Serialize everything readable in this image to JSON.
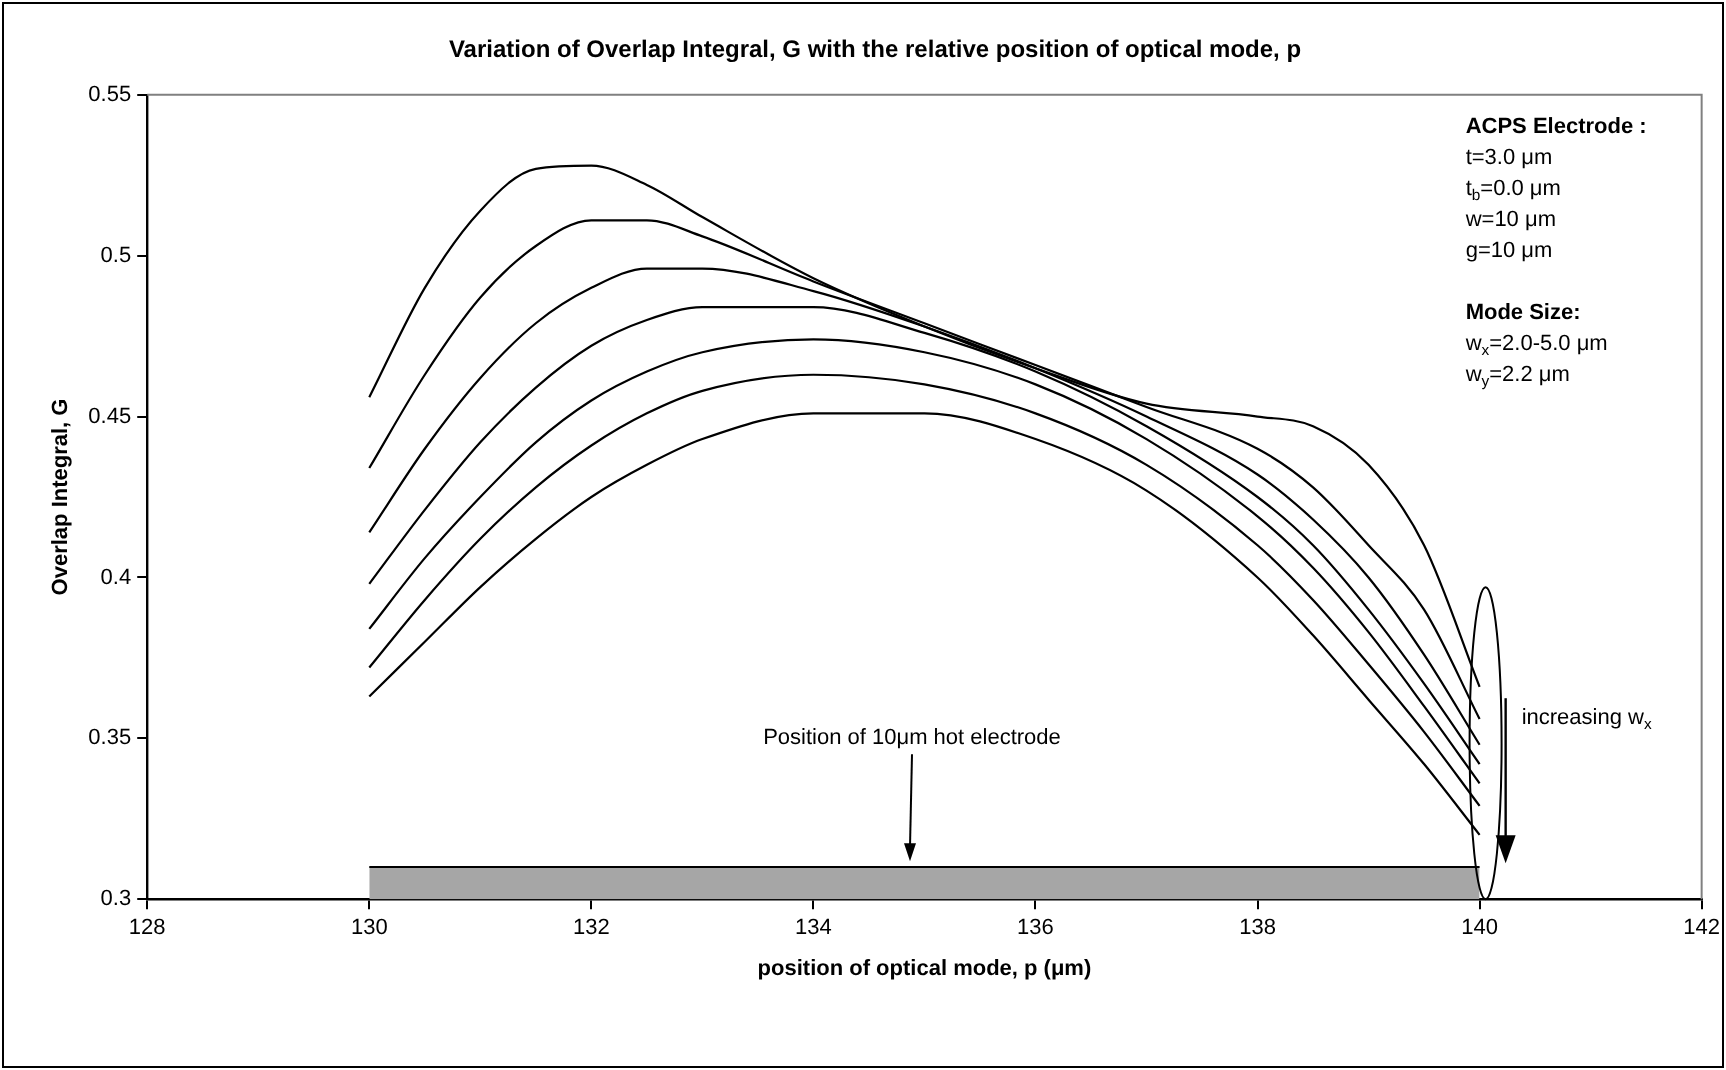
{
  "chart_data": {
    "type": "line",
    "title": "Variation of Overlap Integral, G with the relative position of optical mode, p",
    "xlabel": "position of optical mode, p (μm)",
    "ylabel": "Overlap Integral, G",
    "x": [
      130,
      130.5,
      131,
      131.5,
      132,
      132.5,
      133,
      134,
      135,
      136,
      137,
      138,
      138.5,
      139,
      139.5,
      140
    ],
    "series": [
      {
        "color": "#000000",
        "values": [
          0.456,
          0.49,
          0.514,
          0.527,
          0.528,
          0.522,
          0.512,
          0.493,
          0.478,
          0.465,
          0.454,
          0.45,
          0.447,
          0.435,
          0.41,
          0.366
        ]
      },
      {
        "color": "#000000",
        "values": [
          0.434,
          0.463,
          0.487,
          0.503,
          0.511,
          0.511,
          0.506,
          0.492,
          0.479,
          0.466,
          0.453,
          0.44,
          0.428,
          0.41,
          0.39,
          0.356
        ]
      },
      {
        "color": "#000000",
        "values": [
          0.414,
          0.44,
          0.462,
          0.479,
          0.49,
          0.496,
          0.496,
          0.489,
          0.478,
          0.465,
          0.45,
          0.432,
          0.418,
          0.4,
          0.376,
          0.348
        ]
      },
      {
        "color": "#000000",
        "values": [
          0.398,
          0.421,
          0.442,
          0.459,
          0.472,
          0.48,
          0.484,
          0.484,
          0.476,
          0.464,
          0.447,
          0.425,
          0.41,
          0.39,
          0.367,
          0.342
        ]
      },
      {
        "color": "#000000",
        "values": [
          0.384,
          0.406,
          0.425,
          0.442,
          0.455,
          0.464,
          0.47,
          0.474,
          0.47,
          0.46,
          0.443,
          0.419,
          0.403,
          0.383,
          0.36,
          0.336
        ]
      },
      {
        "color": "#000000",
        "values": [
          0.372,
          0.393,
          0.412,
          0.428,
          0.441,
          0.451,
          0.458,
          0.463,
          0.46,
          0.451,
          0.435,
          0.41,
          0.393,
          0.373,
          0.352,
          0.329
        ]
      },
      {
        "color": "#000000",
        "values": [
          0.363,
          0.38,
          0.397,
          0.412,
          0.425,
          0.435,
          0.443,
          0.451,
          0.451,
          0.443,
          0.427,
          0.4,
          0.382,
          0.362,
          0.342,
          0.32
        ]
      },
      {
        "type": "area",
        "color": "#a6a6a6",
        "x": [
          130,
          140
        ],
        "values": [
          0.31,
          0.31
        ]
      }
    ],
    "xlim": [
      128,
      142
    ],
    "xticks": [
      128,
      130,
      132,
      134,
      136,
      138,
      140,
      142
    ],
    "ylim": [
      0.3,
      0.55
    ],
    "yticks": [
      0.3,
      0.35,
      0.4,
      0.45,
      0.5,
      0.55
    ],
    "annotations": [
      "ACPS Electrode :",
      "t=3.0 μm",
      "t$_{b}$=0.0 μm",
      "w=10 μm",
      "g=10 μm",
      "Mode Size:",
      "w$_{x}$=2.0-5.0 μm",
      "w$_{y}$=2.2 μm",
      "Position of 10μm hot electrode",
      "increasing w$_{x}$"
    ],
    "grid": false,
    "legend": false
  }
}
